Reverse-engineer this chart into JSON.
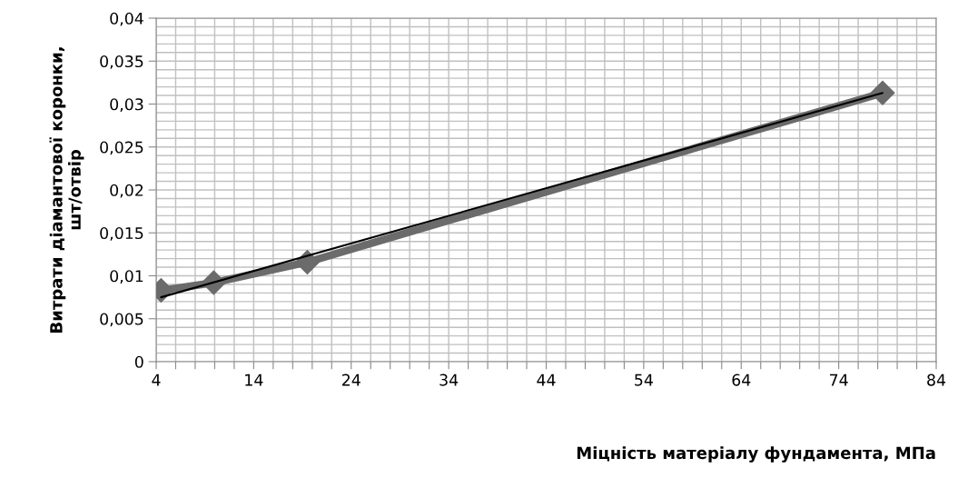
{
  "chart_data": {
    "type": "line",
    "xlabel": "Міцність матеріалу фундамента, МПа",
    "ylabel": "Витрати діамантової коронки,\nшт/отвір",
    "xlim": [
      4,
      84
    ],
    "xticks": [
      4,
      {
        "value": 6,
        "label": null
      },
      {
        "value": 8,
        "label": null
      },
      {
        "value": 10,
        "label": null
      },
      {
        "value": 12,
        "label": null
      },
      14,
      {
        "value": 16,
        "label": null
      },
      {
        "value": 18,
        "label": null
      },
      {
        "value": 20,
        "label": null
      },
      {
        "value": 22,
        "label": null
      },
      24,
      {
        "value": 26,
        "label": null
      },
      {
        "value": 28,
        "label": null
      },
      {
        "value": 30,
        "label": null
      },
      {
        "value": 32,
        "label": null
      },
      34,
      {
        "value": 36,
        "label": null
      },
      {
        "value": 38,
        "label": null
      },
      {
        "value": 40,
        "label": null
      },
      {
        "value": 42,
        "label": null
      },
      44,
      {
        "value": 46,
        "label": null
      },
      {
        "value": 48,
        "label": null
      },
      {
        "value": 50,
        "label": null
      },
      {
        "value": 52,
        "label": null
      },
      54,
      {
        "value": 56,
        "label": null
      },
      {
        "value": 58,
        "label": null
      },
      {
        "value": 60,
        "label": null
      },
      {
        "value": 62,
        "label": null
      },
      64,
      {
        "value": 66,
        "label": null
      },
      {
        "value": 68,
        "label": null
      },
      {
        "value": 70,
        "label": null
      },
      {
        "value": 72,
        "label": null
      },
      74,
      {
        "value": 76,
        "label": null
      },
      {
        "value": 78,
        "label": null
      },
      {
        "value": 80,
        "label": null
      },
      {
        "value": 82,
        "label": null
      },
      84
    ],
    "ylim": [
      0,
      0.04
    ],
    "yticks": [
      0,
      {
        "value": 0.001,
        "label": null
      },
      {
        "value": 0.002,
        "label": null
      },
      {
        "value": 0.003,
        "label": null
      },
      {
        "value": 0.004,
        "label": null
      },
      {
        "value": 0.005,
        "label": "0,005"
      },
      {
        "value": 0.006,
        "label": null
      },
      {
        "value": 0.007,
        "label": null
      },
      {
        "value": 0.008,
        "label": null
      },
      {
        "value": 0.009,
        "label": null
      },
      {
        "value": 0.01,
        "label": "0,01"
      },
      {
        "value": 0.011,
        "label": null
      },
      {
        "value": 0.012,
        "label": null
      },
      {
        "value": 0.013,
        "label": null
      },
      {
        "value": 0.014,
        "label": null
      },
      {
        "value": 0.015,
        "label": "0,015"
      },
      {
        "value": 0.016,
        "label": null
      },
      {
        "value": 0.017,
        "label": null
      },
      {
        "value": 0.018,
        "label": null
      },
      {
        "value": 0.019,
        "label": null
      },
      {
        "value": 0.02,
        "label": "0,02"
      },
      {
        "value": 0.021,
        "label": null
      },
      {
        "value": 0.022,
        "label": null
      },
      {
        "value": 0.023,
        "label": null
      },
      {
        "value": 0.024,
        "label": null
      },
      {
        "value": 0.025,
        "label": "0,025"
      },
      {
        "value": 0.026,
        "label": null
      },
      {
        "value": 0.027,
        "label": null
      },
      {
        "value": 0.028,
        "label": null
      },
      {
        "value": 0.029,
        "label": null
      },
      {
        "value": 0.03,
        "label": "0,03"
      },
      {
        "value": 0.031,
        "label": null
      },
      {
        "value": 0.032,
        "label": null
      },
      {
        "value": 0.033,
        "label": null
      },
      {
        "value": 0.034,
        "label": null
      },
      {
        "value": 0.035,
        "label": "0,035"
      },
      {
        "value": 0.036,
        "label": null
      },
      {
        "value": 0.037,
        "label": null
      },
      {
        "value": 0.038,
        "label": null
      },
      {
        "value": 0.039,
        "label": null
      },
      {
        "value": 0.04,
        "label": "0,04"
      }
    ],
    "grid": true,
    "series": [
      {
        "color": "#6b6b6b",
        "marker": "diamond",
        "x": [
          4.5,
          9.9,
          19.5,
          78.5
        ],
        "values": [
          0.0083,
          0.0092,
          0.0116,
          0.0313
        ]
      },
      {
        "color": "#000000",
        "marker": "none",
        "x": [
          4.5,
          78.5
        ],
        "values": [
          0.0075,
          0.0313
        ]
      }
    ]
  }
}
